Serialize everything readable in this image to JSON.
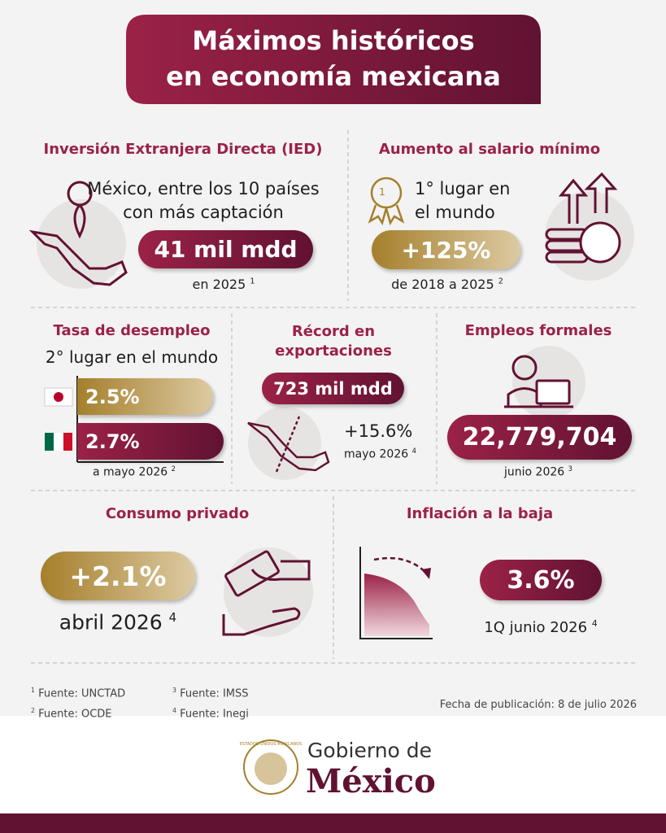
{
  "title": [
    "Máximos históricos",
    "en economía mexicana"
  ],
  "ied": {
    "heading": "Inversión Extranjera Directa (IED)",
    "text": [
      "México, entre los 10 países",
      "con más captación"
    ],
    "badge": "41 mil mdd",
    "note": "en 2025",
    "ref": "1"
  },
  "salario": {
    "heading": "Aumento al salario mínimo",
    "medal": "1",
    "text": [
      "1° lugar en",
      "el mundo"
    ],
    "badge": "+125%",
    "note": "de 2018 a 2025",
    "ref": "2"
  },
  "desempleo": {
    "heading": "Tasa de desempleo",
    "text": "2° lugar en el mundo",
    "bars": [
      "2.5%",
      "2.7%"
    ],
    "note": "a mayo 2026",
    "ref": "2"
  },
  "exportaciones": {
    "heading": [
      "Récord en",
      "exportaciones"
    ],
    "badge": "723 mil mdd",
    "growth": "+15.6%",
    "note": "mayo 2026",
    "ref": "4"
  },
  "empleos": {
    "heading": "Empleos formales",
    "badge": "22,779,704",
    "note": "junio 2026",
    "ref": "3"
  },
  "consumo": {
    "heading": "Consumo privado",
    "badge": "+2.1%",
    "note": "abril 2026",
    "ref": "4"
  },
  "inflacion": {
    "heading": "Inflación a la baja",
    "badge": "3.6%",
    "note": "1Q junio 2026",
    "ref": "4"
  },
  "sources": [
    {
      "ref": "1",
      "text": "Fuente: UNCTAD"
    },
    {
      "ref": "2",
      "text": "Fuente: OCDE"
    },
    {
      "ref": "3",
      "text": "Fuente: IMSS"
    },
    {
      "ref": "4",
      "text": "Fuente: Inegi"
    }
  ],
  "publication": "Fecha de publicación: 8 de julio 2026",
  "footer": {
    "line1": "Gobierno de",
    "line2": "México",
    "seal": "ESTADOS UNIDOS MEXICANOS"
  }
}
